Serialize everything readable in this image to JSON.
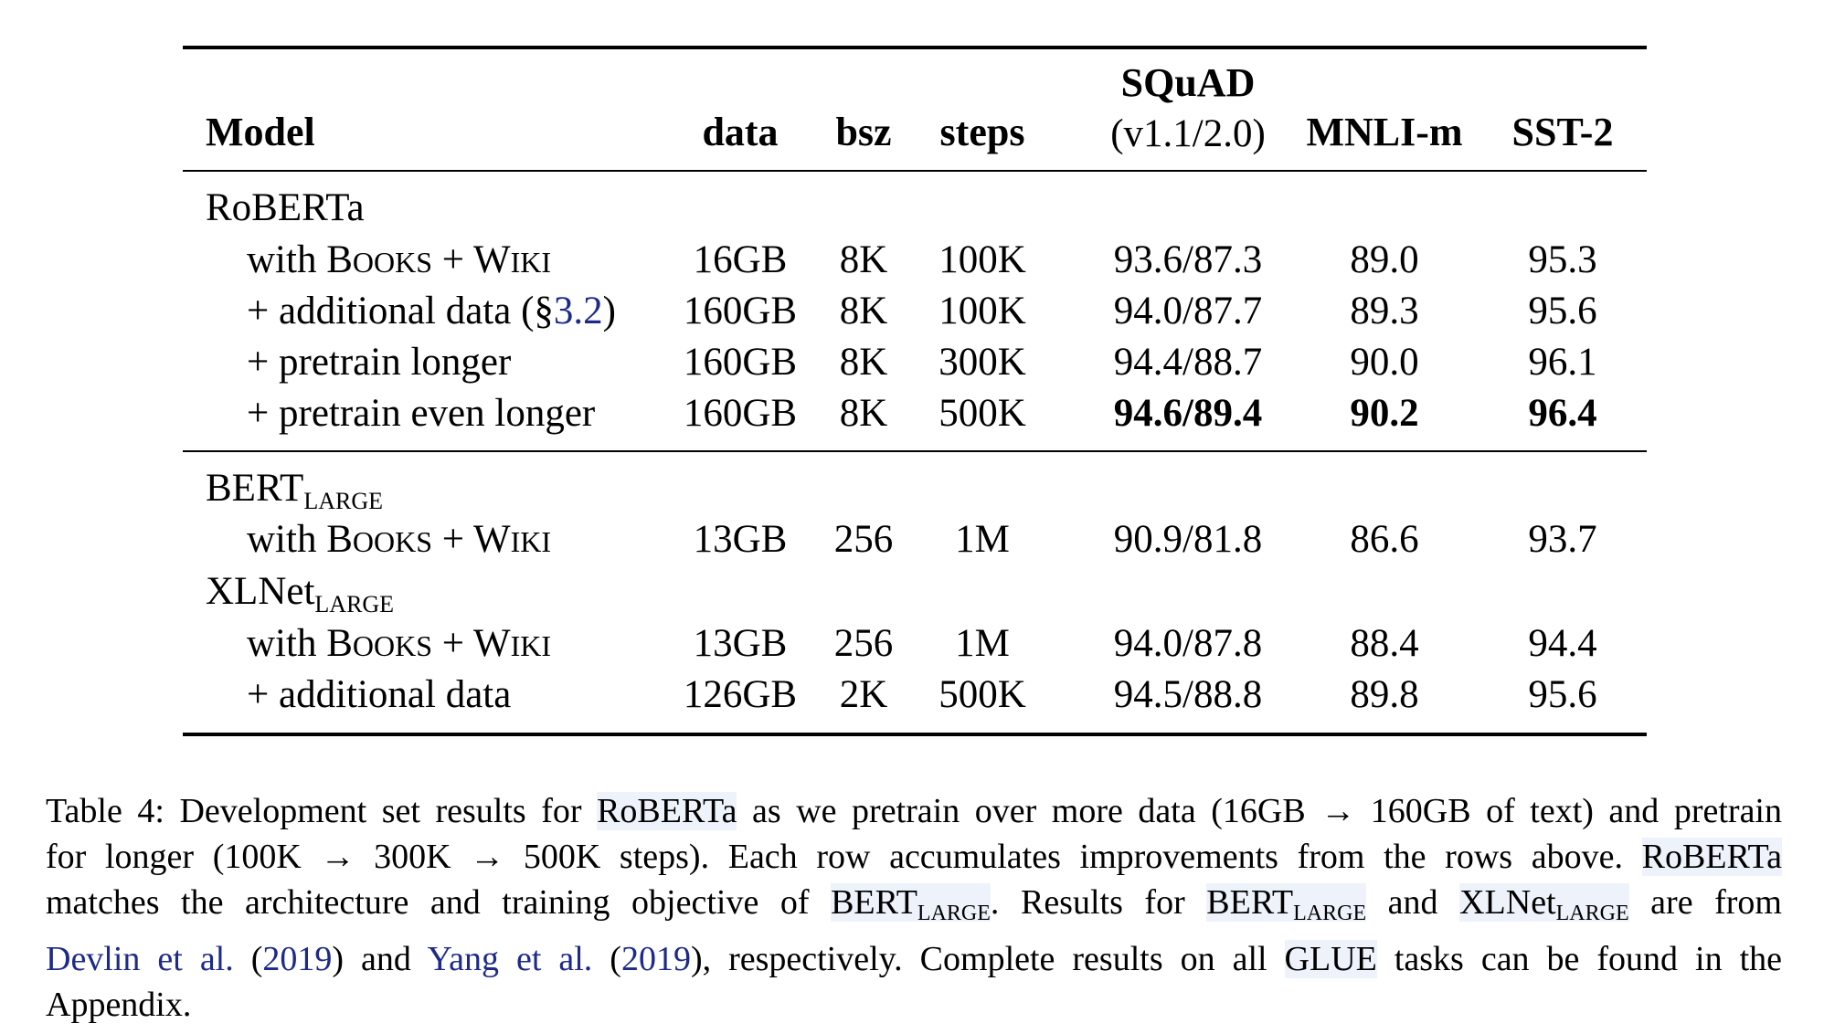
{
  "headers": {
    "model": "Model",
    "data": "data",
    "bsz": "bsz",
    "steps": "steps",
    "squad_line1": "SQuAD",
    "squad_line2": "(v1.1/2.0)",
    "mnli": "MNLI-m",
    "sst": "SST-2"
  },
  "groups": {
    "roberta": "RoBERTa",
    "bert": "BERT",
    "bert_sub": "LARGE",
    "xlnet": "XLNet",
    "xlnet_sub": "LARGE"
  },
  "rows": [
    {
      "model_pre": "with ",
      "books_B": "B",
      "books_rest": "OOKS",
      "plus": " + ",
      "wiki_W": "W",
      "wiki_rest": "IKI",
      "data": "16GB",
      "bsz": "8K",
      "steps": "100K",
      "squad": "93.6/87.3",
      "mnli": "89.0",
      "sst": "95.3"
    },
    {
      "model_text": "+ additional data (§",
      "model_link": "3.2",
      "model_close": ")",
      "data": "160GB",
      "bsz": "8K",
      "steps": "100K",
      "squad": "94.0/87.7",
      "mnli": "89.3",
      "sst": "95.6"
    },
    {
      "model_text": "+ pretrain longer",
      "data": "160GB",
      "bsz": "8K",
      "steps": "300K",
      "squad": "94.4/88.7",
      "mnli": "90.0",
      "sst": "96.1"
    },
    {
      "model_text": "+ pretrain even longer",
      "data": "160GB",
      "bsz": "8K",
      "steps": "500K",
      "squad": "94.6/89.4",
      "mnli": "90.2",
      "sst": "96.4"
    },
    {
      "model_pre": "with ",
      "books_B": "B",
      "books_rest": "OOKS",
      "plus": " + ",
      "wiki_W": "W",
      "wiki_rest": "IKI",
      "data": "13GB",
      "bsz": "256",
      "steps": "1M",
      "squad": "90.9/81.8",
      "mnli": "86.6",
      "sst": "93.7"
    },
    {
      "model_pre": "with ",
      "books_B": "B",
      "books_rest": "OOKS",
      "plus": " + ",
      "wiki_W": "W",
      "wiki_rest": "IKI",
      "data": "13GB",
      "bsz": "256",
      "steps": "1M",
      "squad": "94.0/87.8",
      "mnli": "88.4",
      "sst": "94.4"
    },
    {
      "model_text": "+ additional data",
      "data": "126GB",
      "bsz": "2K",
      "steps": "500K",
      "squad": "94.5/88.8",
      "mnli": "89.8",
      "sst": "95.6"
    }
  ],
  "caption": {
    "l1a": "Table 4: Development set results for ",
    "l1b": "RoBERTa",
    "l1c": " as we pretrain over more data (16GB → 160GB of text) and pretrain",
    "l2a": "for longer (100K → 300K → 500K steps). Each row accumulates improvements from the rows above. ",
    "l2b": "RoBERTa",
    "l3a": "matches the architecture and training objective of ",
    "l3b": "BERT",
    "l3b_sub": "LARGE",
    "l3c": ". Results for ",
    "l3d": "BERT",
    "l3d_sub": "LARGE",
    "l3e": " and ",
    "l3f": "XLNet",
    "l3f_sub": "LARGE",
    "l3g": " are from",
    "l4a": "Devlin et al.",
    "l4b": " (",
    "l4c": "2019",
    "l4d": ") and ",
    "l4e": "Yang et al.",
    "l4f": " (",
    "l4g": "2019",
    "l4h": "), respectively. Complete results on all ",
    "l4i": "GLUE",
    "l4j": " tasks can be found in the",
    "l5": "Appendix."
  }
}
